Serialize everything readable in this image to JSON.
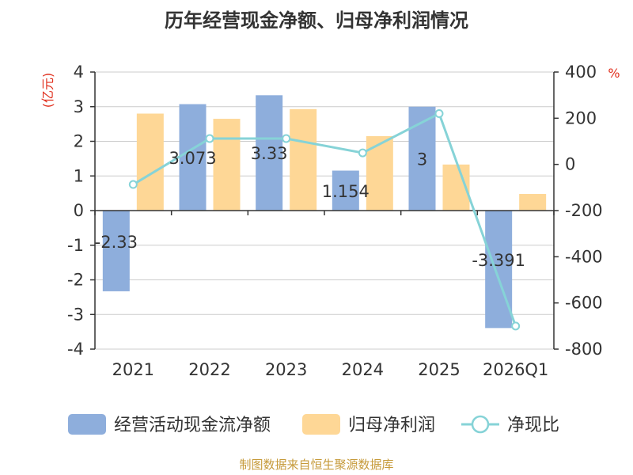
{
  "chart_data": {
    "type": "bar",
    "title": "历年经营现金净额、归母净利润情况",
    "categories": [
      "2021",
      "2022",
      "2023",
      "2024",
      "2025",
      "2026Q1"
    ],
    "series": [
      {
        "name": "经营活动现金流净额",
        "type": "bar",
        "axis": "left",
        "color": "#8eaedc",
        "values": [
          -2.33,
          3.073,
          3.33,
          1.154,
          3,
          -3.391
        ],
        "labels": [
          "-2.33",
          "3.073",
          "3.33",
          "1.154",
          "3",
          "-3.391"
        ]
      },
      {
        "name": "归母净利润",
        "type": "bar",
        "axis": "left",
        "color": "#fed796",
        "values": [
          2.8,
          2.65,
          2.93,
          2.15,
          1.33,
          0.48
        ]
      },
      {
        "name": "净现比",
        "type": "line",
        "axis": "right",
        "color": "#86d3d7",
        "values": [
          -87,
          112,
          112,
          50,
          220,
          -700
        ]
      }
    ],
    "y_left": {
      "unit": "(亿元)",
      "ylim": [
        -4,
        4
      ],
      "ticks": [
        4,
        3,
        2,
        1,
        0,
        -1,
        -2,
        -3,
        -4
      ]
    },
    "y_right": {
      "unit": "%",
      "ylim": [
        -800,
        400
      ],
      "ticks": [
        400,
        200,
        0,
        -200,
        -400,
        -600,
        -800
      ]
    },
    "legend_position": "bottom",
    "grid": true
  },
  "footer": {
    "source": "制图数据来自恒生聚源数据库"
  },
  "colors": {
    "unit_left": "#e0301e",
    "unit_right": "#e0301e",
    "source": "#c69a3a",
    "axis": "#333333",
    "grid": "#cccccc"
  }
}
